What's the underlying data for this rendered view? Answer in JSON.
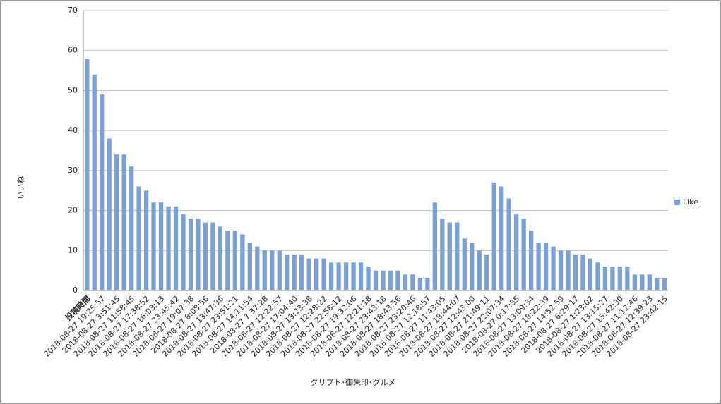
{
  "chart_data": {
    "type": "bar",
    "xlabel": "クリプト･御朱印･グルメ",
    "ylabel": "いいね",
    "categories": [
      "投稿時間",
      null,
      "2018-08-27 19:25:57",
      null,
      "2018-08-27 3:51:45",
      null,
      "2018-08-27 11:58:45",
      null,
      "2018-08-27 17:38:52",
      null,
      "2018-08-27 16:03:13",
      null,
      "2018-08-27 23:45:42",
      null,
      "2018-08-27 19:07:38",
      null,
      "2018-08-27 8:08:56",
      null,
      "2018-08-27 13:47:36",
      null,
      "2018-08-27 23:51:21",
      null,
      "2018-08-27 14:11:54",
      null,
      "2018-08-27 7:37:28",
      null,
      "2018-08-27 12:22:57",
      null,
      "2018-08-27 17:04:40",
      null,
      "2018-08-27 13:23:38",
      null,
      "2018-08-27 12:28:22",
      null,
      "2018-08-27 22:58:12",
      null,
      "2018-08-27 19:32:06",
      null,
      "2018-08-27 12:21:18",
      null,
      "2018-08-27 23:43:18",
      null,
      "2018-08-27 18:43:56",
      null,
      "2018-08-27 23:20:46",
      null,
      "2018-08-27 12:18:57",
      null,
      "2018-08-27 11:43:05",
      null,
      "2018-08-27 18:44:07",
      null,
      "2018-08-27 12:43:00",
      null,
      "2018-08-27 21:49:11",
      null,
      "2018-08-27 22:07:34",
      null,
      "2018-08-27 0:17:35",
      null,
      "2018-08-27 13:09:34",
      null,
      "2018-08-27 18:22:39",
      null,
      "2018-08-27 14:52:59",
      null,
      "2018-08-27 6:29:17",
      null,
      "2018-08-27 1:23:02",
      null,
      "2018-08-27 13:15:27",
      null,
      "2018-08-27 15:42:30",
      null,
      "2018-08-27 11:12:46",
      null,
      "2018-08-27 12:39:23",
      null,
      "2018-08-27 23:42:15"
    ],
    "series": [
      {
        "name": "Like",
        "color": "#7ba0d4",
        "values": [
          58,
          54,
          49,
          38,
          34,
          34,
          31,
          26,
          25,
          22,
          22,
          21,
          21,
          19,
          18,
          18,
          17,
          17,
          16,
          15,
          15,
          14,
          12,
          11,
          10,
          10,
          10,
          9,
          9,
          9,
          8,
          8,
          8,
          7,
          7,
          7,
          7,
          7,
          6,
          5,
          5,
          5,
          5,
          4,
          4,
          3,
          3,
          22,
          18,
          17,
          17,
          13,
          12,
          10,
          9,
          27,
          26,
          23,
          19,
          18,
          15,
          12,
          12,
          11,
          10,
          10,
          9,
          9,
          8,
          7,
          6,
          6,
          6,
          6,
          4,
          4,
          4,
          3,
          3
        ]
      }
    ],
    "ylim": [
      0,
      70
    ],
    "yticks": [
      0,
      10,
      20,
      30,
      40,
      50,
      60,
      70
    ],
    "grid": true,
    "legend": "right"
  }
}
